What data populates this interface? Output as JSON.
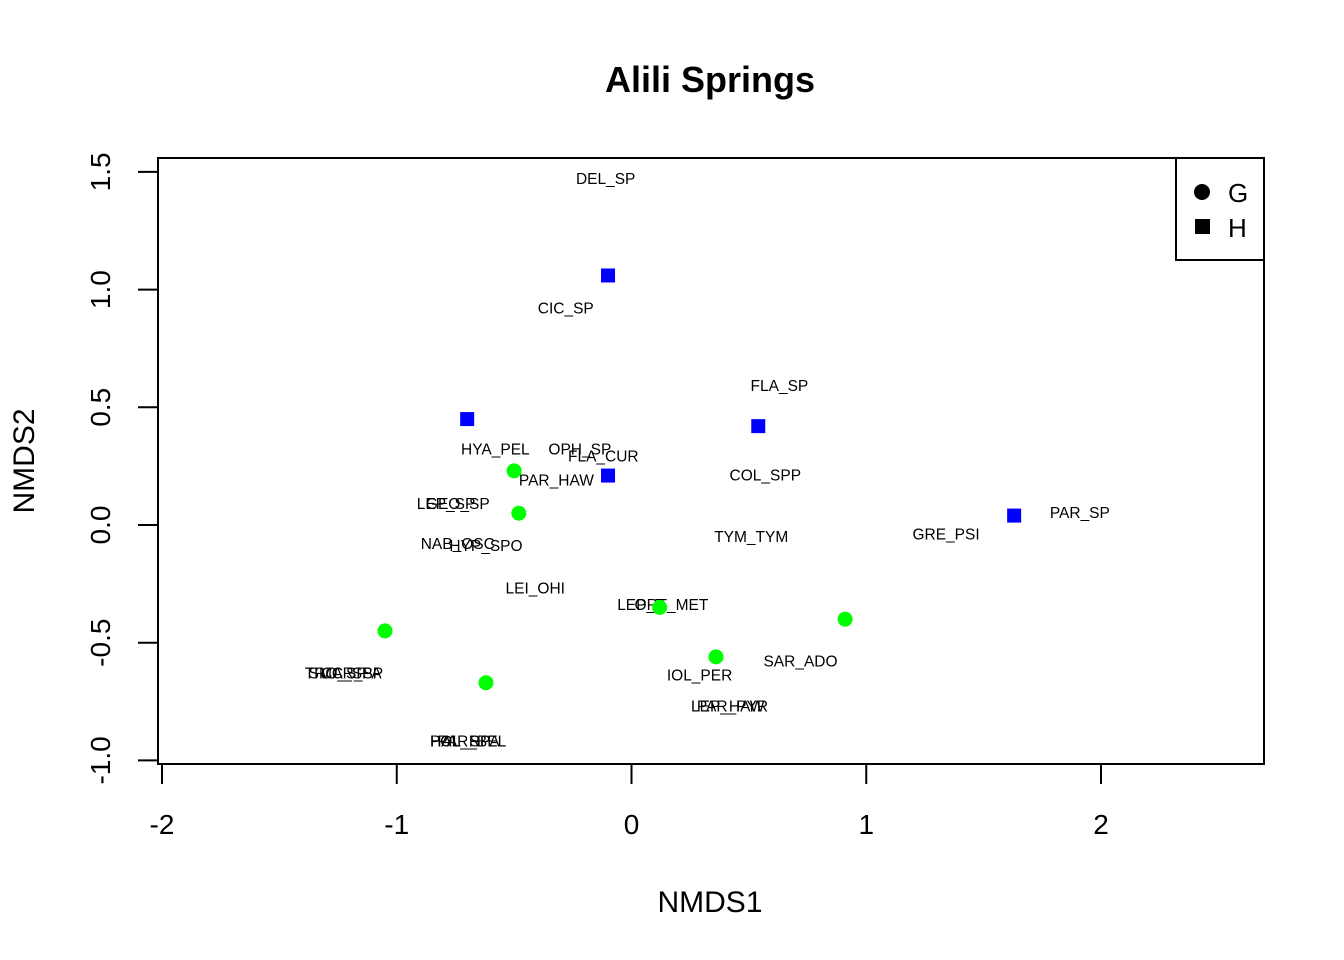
{
  "chart_data": {
    "type": "scatter",
    "title": "Alili Springs",
    "xlabel": "NMDS1",
    "ylabel": "NMDS2",
    "xlim": [
      -2,
      2.7
    ],
    "ylim": [
      -1.0,
      1.6
    ],
    "xticks": [
      -2,
      -1,
      0,
      1,
      2
    ],
    "yticks": [
      -1.0,
      -0.5,
      0.0,
      0.5,
      1.0,
      1.5
    ],
    "xtick_labels": [
      "-2",
      "-1",
      "0",
      "1",
      "2"
    ],
    "ytick_labels": [
      "-1.0",
      "-0.5",
      "0.0",
      "0.5",
      "1.0",
      "1.5"
    ],
    "grid": false,
    "legend": {
      "placement": "top-right",
      "entries": [
        {
          "label": "G",
          "shape": "circle"
        },
        {
          "label": "H",
          "shape": "square"
        }
      ]
    },
    "series": [
      {
        "name": "G",
        "shape": "circle",
        "color": "#00ff00",
        "points": [
          {
            "x": -0.5,
            "y": 0.23
          },
          {
            "x": -0.48,
            "y": 0.05
          },
          {
            "x": 0.12,
            "y": -0.35
          },
          {
            "x": 0.91,
            "y": -0.4
          },
          {
            "x": -1.05,
            "y": -0.45
          },
          {
            "x": 0.36,
            "y": -0.56
          },
          {
            "x": -0.62,
            "y": -0.67
          }
        ]
      },
      {
        "name": "H",
        "shape": "square",
        "color": "#0000ff",
        "points": [
          {
            "x": -0.1,
            "y": 1.06
          },
          {
            "x": -0.7,
            "y": 0.45
          },
          {
            "x": 0.54,
            "y": 0.42
          },
          {
            "x": -0.1,
            "y": 0.21
          },
          {
            "x": 1.63,
            "y": 0.04
          }
        ]
      }
    ],
    "species_labels": [
      {
        "text": "DEL_SP",
        "x": -0.11,
        "y": 1.47
      },
      {
        "text": "CIC_SP",
        "x": -0.28,
        "y": 0.92
      },
      {
        "text": "FLA_SP",
        "x": 0.63,
        "y": 0.59
      },
      {
        "text": "HYA_PEL",
        "x": -0.58,
        "y": 0.32
      },
      {
        "text": "OPH_SP",
        "x": -0.22,
        "y": 0.32
      },
      {
        "text": "FLA_CUR",
        "x": -0.12,
        "y": 0.29
      },
      {
        "text": "PAR_HAW",
        "x": -0.32,
        "y": 0.19
      },
      {
        "text": "COL_SPP",
        "x": 0.57,
        "y": 0.21
      },
      {
        "text": "LEP_SP",
        "x": -0.79,
        "y": 0.09
      },
      {
        "text": "GEO_SP",
        "x": -0.74,
        "y": 0.09
      },
      {
        "text": "PAR_SP",
        "x": 1.91,
        "y": 0.05
      },
      {
        "text": "GRE_PSI",
        "x": 1.34,
        "y": -0.04
      },
      {
        "text": "TYM_TYM",
        "x": 0.51,
        "y": -0.05
      },
      {
        "text": "NAB_OSC",
        "x": -0.74,
        "y": -0.08
      },
      {
        "text": "HYP_SPO",
        "x": -0.62,
        "y": -0.09
      },
      {
        "text": "LEI_OHI",
        "x": -0.41,
        "y": -0.27
      },
      {
        "text": "LEP_T",
        "x": 0.04,
        "y": -0.34
      },
      {
        "text": "ORT_MET",
        "x": 0.17,
        "y": -0.34
      },
      {
        "text": "SAR_ADO",
        "x": 0.72,
        "y": -0.58
      },
      {
        "text": "IOL_PER",
        "x": 0.29,
        "y": -0.64
      },
      {
        "text": "LEP_HAW",
        "x": 0.41,
        "y": -0.77
      },
      {
        "text": "PAR_PYR",
        "x": 0.43,
        "y": -0.77
      },
      {
        "text": "SMC_SPA",
        "x": -1.22,
        "y": -0.63
      },
      {
        "text": "TRO_SP",
        "x": -1.26,
        "y": -0.63
      },
      {
        "text": "CAR_SP",
        "x": -1.19,
        "y": -0.63
      },
      {
        "text": "POL_SP",
        "x": -0.73,
        "y": -0.92
      },
      {
        "text": "PAR_BEL",
        "x": -0.68,
        "y": -0.92
      },
      {
        "text": "HAL_RPA",
        "x": -0.71,
        "y": -0.92
      }
    ]
  }
}
